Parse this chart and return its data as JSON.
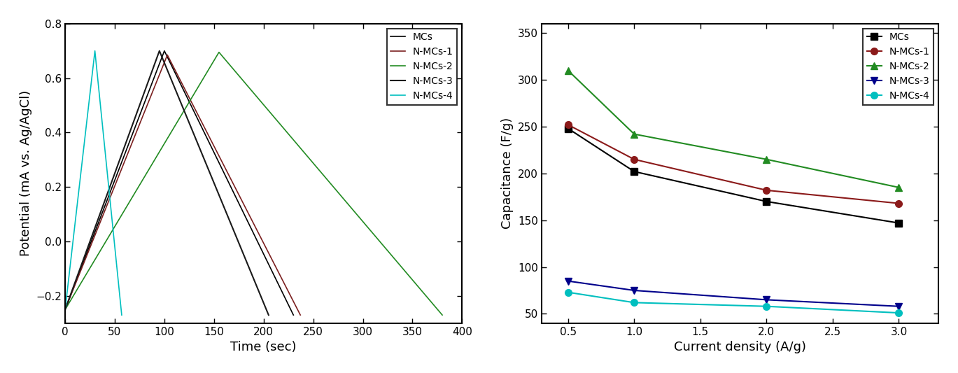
{
  "left_series": [
    {
      "label": "MCs",
      "color": "#000000",
      "linewidth": 1.2,
      "x": [
        0,
        100,
        230
      ],
      "y": [
        -0.25,
        0.7,
        -0.27
      ]
    },
    {
      "label": "N-MCs-1",
      "color": "#7B2020",
      "linewidth": 1.2,
      "x": [
        0,
        103,
        237
      ],
      "y": [
        -0.25,
        0.685,
        -0.27
      ]
    },
    {
      "label": "N-MCs-2",
      "color": "#228B22",
      "linewidth": 1.2,
      "x": [
        0,
        155,
        380
      ],
      "y": [
        -0.25,
        0.695,
        -0.27
      ]
    },
    {
      "label": "N-MCs-3",
      "color": "#1a1a1a",
      "linewidth": 1.5,
      "x": [
        0,
        95,
        205
      ],
      "y": [
        -0.25,
        0.7,
        -0.27
      ]
    },
    {
      "label": "N-MCs-4",
      "color": "#00BFBF",
      "linewidth": 1.2,
      "x": [
        0,
        30,
        57
      ],
      "y": [
        -0.25,
        0.7,
        -0.27
      ]
    }
  ],
  "left_xlabel": "Time (sec)",
  "left_ylabel": "Potential (mA vs. Ag/AgCl)",
  "left_xlim": [
    0,
    400
  ],
  "left_ylim": [
    -0.3,
    0.8
  ],
  "left_xticks": [
    0,
    50,
    100,
    150,
    200,
    250,
    300,
    350,
    400
  ],
  "left_yticks": [
    -0.2,
    0.0,
    0.2,
    0.4,
    0.6,
    0.8
  ],
  "right_series": [
    {
      "label": "MCs",
      "color": "#000000",
      "marker": "s",
      "markersize": 7,
      "x": [
        0.5,
        1.0,
        2.0,
        3.0
      ],
      "y": [
        248,
        202,
        170,
        147
      ]
    },
    {
      "label": "N-MCs-1",
      "color": "#8B1A1A",
      "marker": "o",
      "markersize": 7,
      "x": [
        0.5,
        1.0,
        2.0,
        3.0
      ],
      "y": [
        252,
        215,
        182,
        168
      ]
    },
    {
      "label": "N-MCs-2",
      "color": "#228B22",
      "marker": "^",
      "markersize": 7,
      "x": [
        0.5,
        1.0,
        2.0,
        3.0
      ],
      "y": [
        310,
        242,
        215,
        185
      ]
    },
    {
      "label": "N-MCs-3",
      "color": "#00008B",
      "marker": "v",
      "markersize": 7,
      "x": [
        0.5,
        1.0,
        2.0,
        3.0
      ],
      "y": [
        85,
        75,
        65,
        58
      ]
    },
    {
      "label": "N-MCs-4",
      "color": "#00BFBF",
      "marker": "o",
      "markersize": 7,
      "x": [
        0.5,
        1.0,
        2.0,
        3.0
      ],
      "y": [
        73,
        62,
        58,
        51
      ]
    }
  ],
  "right_xlabel": "Current density (A/g)",
  "right_ylabel": "Capacitance (F/g)",
  "right_xlim": [
    0.3,
    3.3
  ],
  "right_ylim": [
    40,
    360
  ],
  "right_xticks": [
    0.5,
    1.0,
    1.5,
    2.0,
    2.5,
    3.0
  ],
  "right_yticks": [
    50,
    100,
    150,
    200,
    250,
    300,
    350
  ],
  "bg_color": "#ffffff",
  "legend_fontsize": 10,
  "axis_label_fontsize": 13,
  "tick_fontsize": 11,
  "spine_linewidth": 1.5
}
